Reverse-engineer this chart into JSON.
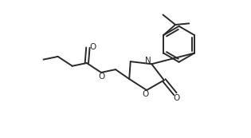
{
  "bg_color": "#ffffff",
  "line_color": "#2a2a2a",
  "line_width": 1.4,
  "figsize": [
    3.15,
    1.73
  ],
  "dpi": 100,
  "xlim": [
    0,
    10
  ],
  "ylim": [
    0,
    5.5
  ]
}
